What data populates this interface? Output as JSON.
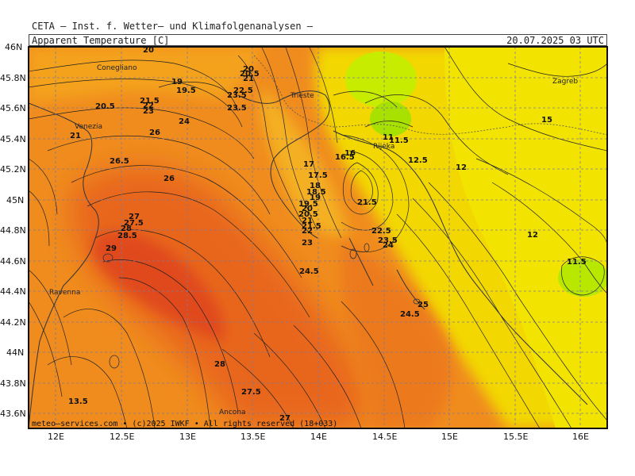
{
  "header": {
    "title": "CETA — Inst. f. Wetter— und Klimafolgenanalysen —",
    "variable": "Apparent_Temperature [C]",
    "valid_time": "20.07.2025 03 UTC"
  },
  "footer": "meteo—services.com • (c)2025 IWKF • All rights reserved (18+033)",
  "lat_labels": [
    "46N",
    "45.8N",
    "45.6N",
    "45.4N",
    "45.2N",
    "45N",
    "44.8N",
    "44.6N",
    "44.4N",
    "44.2N",
    "44N",
    "43.8N",
    "43.6N"
  ],
  "lon_labels": [
    "12E",
    "12.5E",
    "13E",
    "13.5E",
    "14E",
    "14.5E",
    "15E",
    "15.5E",
    "16E"
  ],
  "cities": [
    "Conegliano",
    "Venezia",
    "Trieste",
    "Rijeka",
    "Zagreb",
    "Ravenna",
    "Ancona"
  ],
  "contour_labels": [
    "20",
    "19",
    "19.5",
    "20.5",
    "21.5",
    "22",
    "23",
    "26",
    "24",
    "21",
    "26.5",
    "26",
    "27",
    "27.5",
    "28",
    "28.5",
    "29",
    "20",
    "20.5",
    "21",
    "22.5",
    "23.5",
    "23.5",
    "17",
    "17.5",
    "18",
    "18.5",
    "19",
    "19.5",
    "20",
    "20.5",
    "21",
    "21.5",
    "22",
    "23",
    "24.5",
    "16",
    "16.5",
    "11",
    "11.5",
    "12.5",
    "12",
    "15",
    "12",
    "11.5",
    "21.5",
    "22.5",
    "23.5",
    "24",
    "25",
    "24.5",
    "28",
    "27.5",
    "27",
    "13.5"
  ],
  "colors": {
    "warm_orange": "#f08c1e",
    "orange_red": "#e85c1a",
    "red": "#e0401a",
    "yellow": "#f2e200",
    "lime": "#c8ec00",
    "green": "#a8e000",
    "contour": "#222222"
  }
}
